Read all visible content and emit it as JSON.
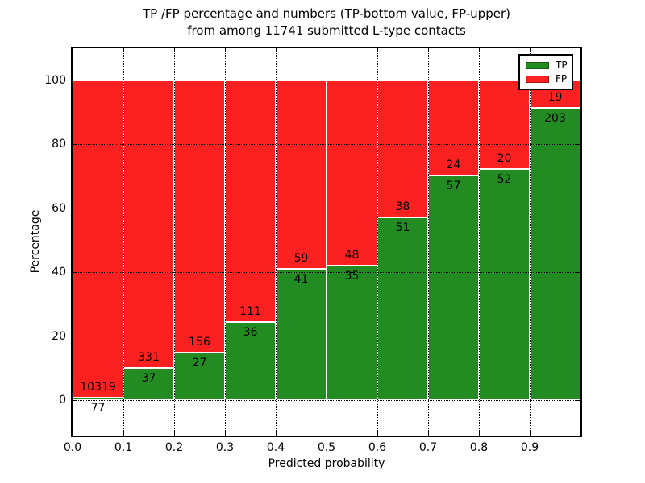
{
  "title": {
    "line1": "TP /FP percentage and numbers (TP-bottom value, FP-upper)",
    "line2": "from among 11741 submitted L-type contacts"
  },
  "legend": {
    "items": [
      {
        "label": "TP",
        "color": "#228b22"
      },
      {
        "label": "FP",
        "color": "#fc2121"
      }
    ]
  },
  "colors": {
    "tp_green": "#228b22",
    "fp_red": "#fc2121",
    "grid": "#000000",
    "background": "#ffffff",
    "text": "#000000"
  },
  "chart_data": {
    "type": "bar",
    "stacked": true,
    "title": "TP /FP percentage and numbers (TP-bottom value, FP-upper) from among 11741 submitted L-type contacts",
    "xlabel": "Predicted probability",
    "ylabel": "Percentage",
    "xlim": [
      0.0,
      1.0
    ],
    "ylim": [
      -11,
      110
    ],
    "grid": "dotted both axes, drawn over bars",
    "legend_position": "upper right",
    "total_contacts": 11741,
    "bin_width": 0.1,
    "categories": [
      "0.0-0.1",
      "0.1-0.2",
      "0.2-0.3",
      "0.3-0.4",
      "0.4-0.5",
      "0.5-0.6",
      "0.6-0.7",
      "0.7-0.8",
      "0.8-0.9",
      "0.9-1.0"
    ],
    "x_tick_labels": [
      "0.0",
      "0.1",
      "0.2",
      "0.3",
      "0.4",
      "0.5",
      "0.6",
      "0.7",
      "0.8",
      "0.9"
    ],
    "y_tick_values": [
      0,
      20,
      40,
      60,
      80,
      100
    ],
    "y_tick_labels": [
      "0",
      "20",
      "40",
      "60",
      "80",
      "100"
    ],
    "series": [
      {
        "name": "TP",
        "color": "#228b22",
        "counts": [
          77,
          37,
          27,
          36,
          41,
          35,
          51,
          57,
          52,
          203
        ],
        "pct": [
          0.74,
          10.05,
          14.75,
          24.49,
          41.0,
          42.17,
          57.3,
          70.37,
          72.22,
          91.44
        ]
      },
      {
        "name": "FP",
        "color": "#fc2121",
        "counts": [
          10319,
          331,
          156,
          111,
          59,
          48,
          38,
          24,
          20,
          19
        ],
        "pct": [
          99.26,
          89.95,
          85.25,
          75.51,
          59.0,
          57.83,
          42.7,
          29.63,
          27.78,
          8.56
        ]
      }
    ]
  }
}
